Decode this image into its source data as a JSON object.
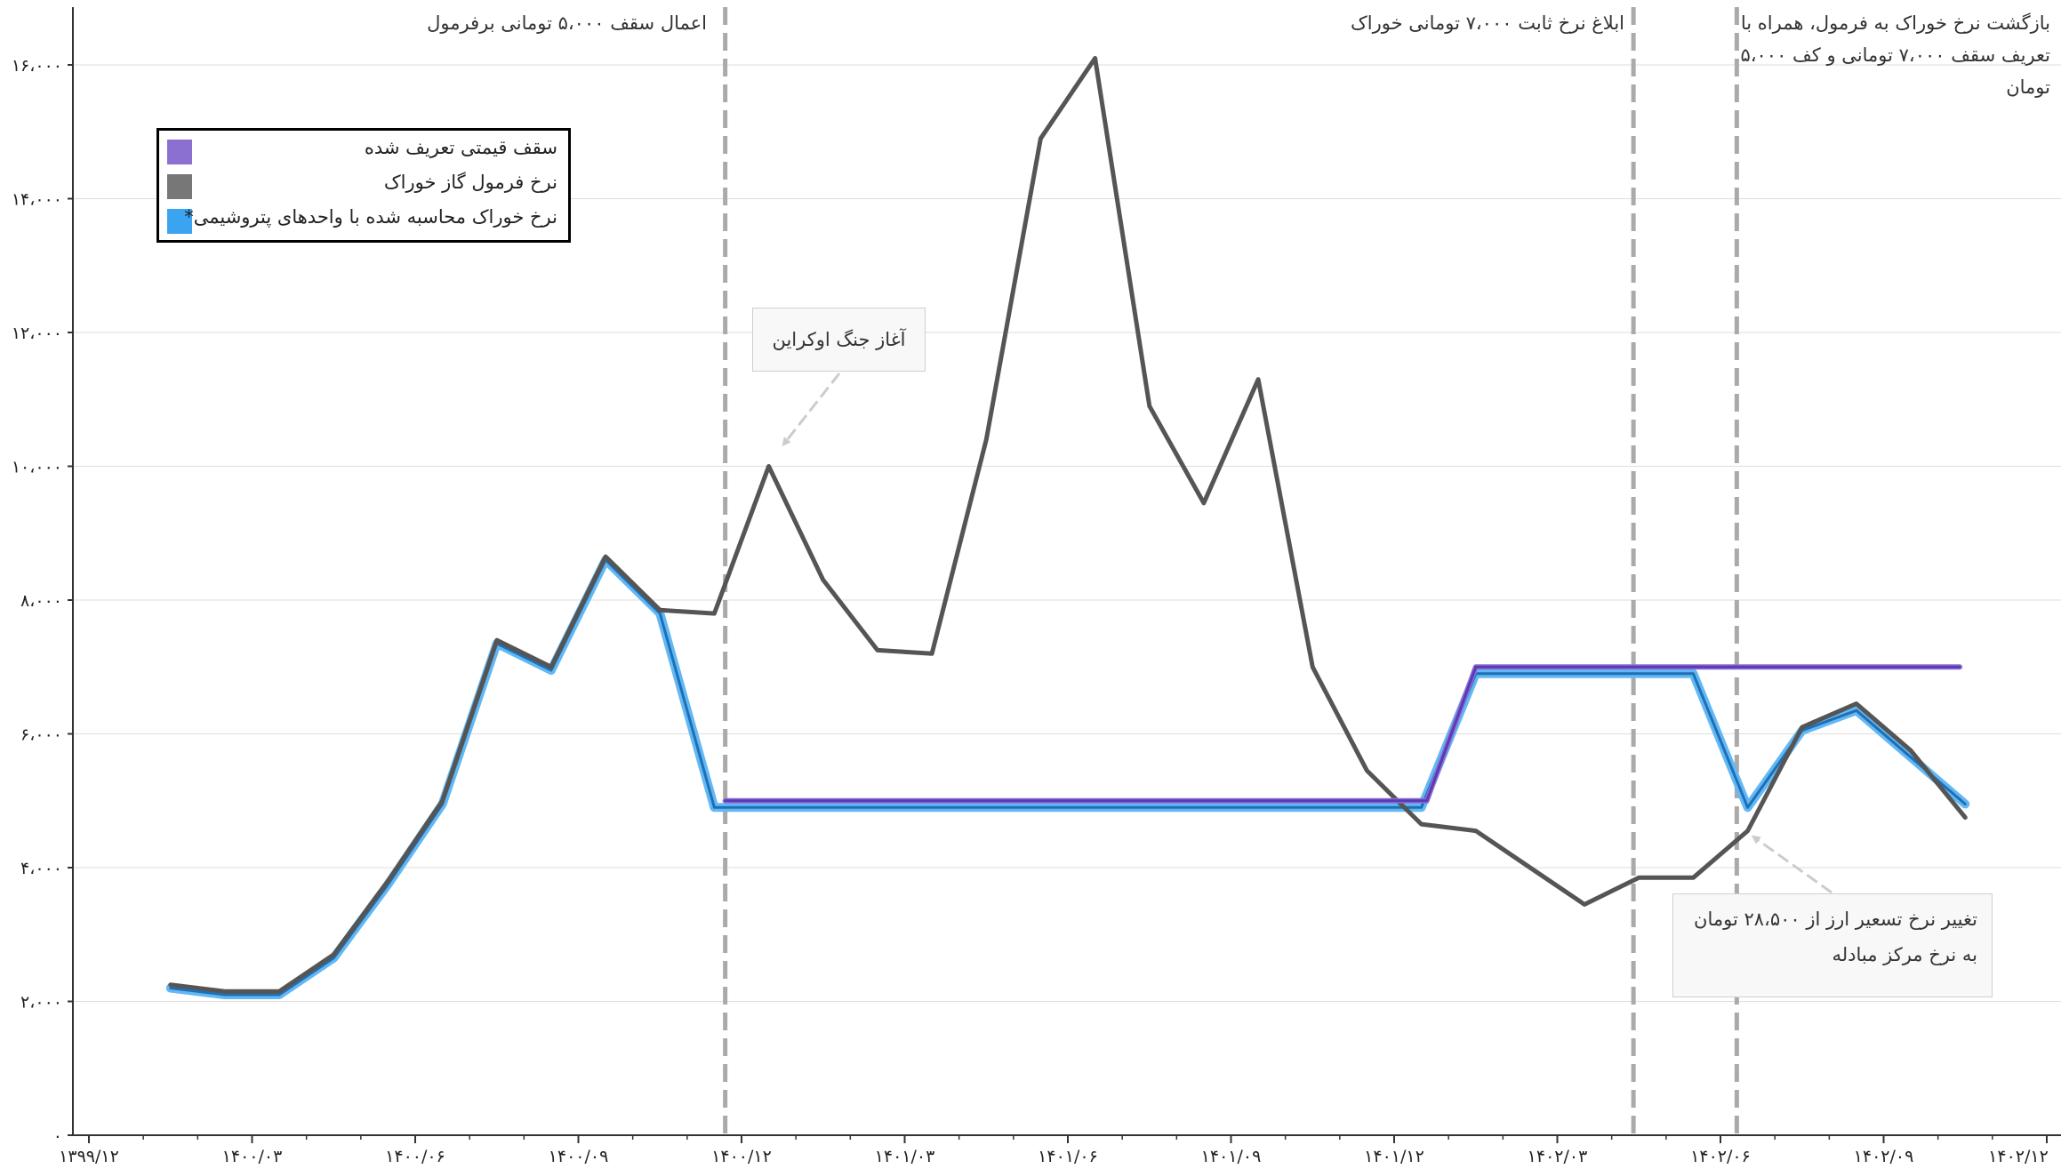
{
  "chart_data": {
    "type": "line",
    "title": "",
    "xlabel": "",
    "ylabel": "",
    "ylim": [
      0,
      16500
    ],
    "y_ticks": [
      0,
      2000,
      4000,
      6000,
      8000,
      10000,
      12000,
      14000,
      16000
    ],
    "y_tick_labels": [
      "۰",
      "۲،۰۰۰",
      "۴،۰۰۰",
      "۶،۰۰۰",
      "۸،۰۰۰",
      "۱۰،۰۰۰",
      "۱۲،۰۰۰",
      "۱۴،۰۰۰",
      "۱۶،۰۰۰"
    ],
    "x_range": [
      -0.5,
      35.5
    ],
    "x_ticks": [
      0,
      3,
      6,
      9,
      12,
      15,
      18,
      21,
      24,
      27,
      30,
      33,
      36
    ],
    "x_tick_labels": [
      "۱۳۹۹/۱۲",
      "۱۴۰۰/۰۳",
      "۱۴۰۰/۰۶",
      "۱۴۰۰/۰۹",
      "۱۴۰۰/۱۲",
      "۱۴۰۱/۰۳",
      "۱۴۰۱/۰۶",
      "۱۴۰۱/۰۹",
      "۱۴۰۱/۱۲",
      "۱۴۰۲/۰۳",
      "۱۴۰۲/۰۶",
      "۱۴۰۲/۰۹",
      "۱۴۰۲/۱۲"
    ],
    "x_axis": "months since ۱۳۹۹/۱۲",
    "grid": true,
    "legend_position": "top-left",
    "series": [
      {
        "name": "سقف قیمتی تعریف شده",
        "color": "#6a4bc4",
        "x": [
          11.7,
          24.6,
          25.5,
          34.4
        ],
        "values": [
          5000,
          5000,
          7000,
          7000
        ]
      },
      {
        "name": "نرخ فرمول گاز خوراک",
        "color": "#555555",
        "x": [
          1.5,
          2.5,
          3.5,
          4.5,
          5.5,
          6.5,
          7.5,
          8.5,
          9.5,
          10.5,
          11.5,
          12.5,
          13.5,
          14.5,
          15.5,
          16.5,
          17.5,
          18.5,
          19.5,
          20.5,
          21.5,
          22.5,
          23.5,
          24.5,
          25.5,
          26.5,
          27.5,
          28.5,
          29.5,
          30.5,
          31.5,
          32.5,
          33.5,
          34.5
        ],
        "values": [
          2250,
          2150,
          2150,
          2700,
          3800,
          5000,
          7400,
          7000,
          8650,
          7850,
          7800,
          10000,
          8300,
          7250,
          7200,
          10400,
          14900,
          16100,
          10900,
          9450,
          11300,
          7000,
          5450,
          4650,
          4550,
          4000,
          3450,
          3850,
          3850,
          4550,
          6100,
          6450,
          5750,
          4750
        ]
      },
      {
        "name": "نرخ خوراک محاسبه شده با واحدهای پتروشیمی*",
        "color": "#3aa4f0",
        "x": [
          1.5,
          2.5,
          3.5,
          4.5,
          5.5,
          6.5,
          7.5,
          8.5,
          9.5,
          10.5,
          11.5,
          12.5,
          13.5,
          14.5,
          15.5,
          16.5,
          17.5,
          18.5,
          19.5,
          20.5,
          21.5,
          22.5,
          23.5,
          24.5,
          25.5,
          26.5,
          27.5,
          28.5,
          29.5,
          30.5,
          31.5,
          32.5,
          33.5,
          34.5
        ],
        "values": [
          2200,
          2100,
          2100,
          2650,
          3750,
          4950,
          7350,
          6950,
          8600,
          7800,
          4900,
          4900,
          4900,
          4900,
          4900,
          4900,
          4900,
          4900,
          4900,
          4900,
          4900,
          4900,
          4900,
          4900,
          6900,
          6900,
          6900,
          6900,
          6900,
          4900,
          6050,
          6350,
          5650,
          4950
        ]
      }
    ],
    "vlines": [
      11.7,
      28.4,
      30.3
    ],
    "annotations": {
      "top_left": "اعمال سقف ۵،۰۰۰ تومانی برفرمول",
      "top_middle": "ابلاغ نرخ ثابت ۷،۰۰۰ تومانی خوراک",
      "top_right_line1": "بازگشت نرخ خوراک به فرمول، همراه با",
      "top_right_line2": "تعریف سقف ۷،۰۰۰ تومانی و کف ۵،۰۰۰",
      "top_right_line3": "تومان",
      "war_callout": "آغاز جنگ اوکراین",
      "fx_callout_line1": "تغییر نرخ تسعیر ارز از ۲۸،۵۰۰ تومان",
      "fx_callout_line2": "به نرخ مرکز مبادله"
    }
  }
}
